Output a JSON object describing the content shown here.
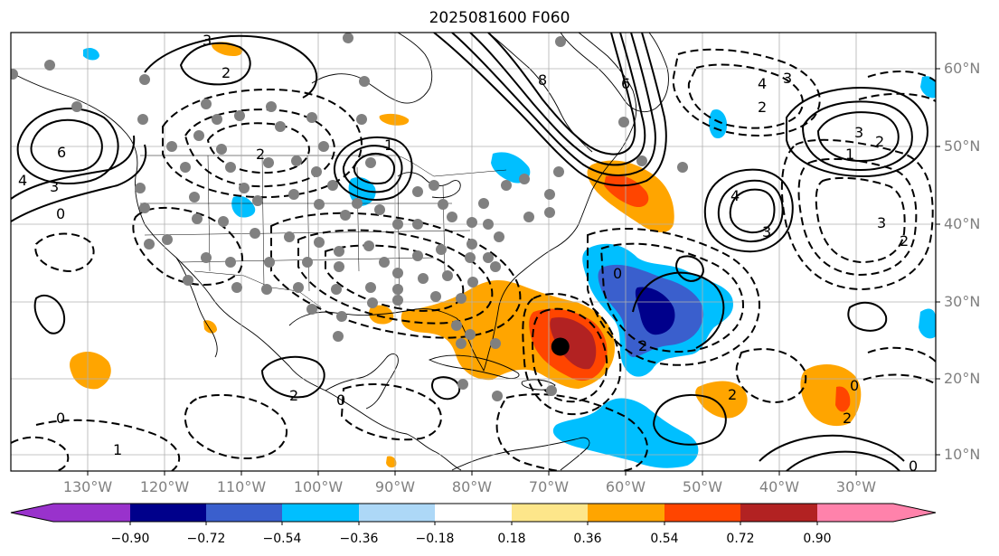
{
  "title": "2025081600 F060",
  "axes": {
    "lat_ticks": [
      "60°N",
      "50°N",
      "40°N",
      "30°N",
      "20°N",
      "10°N"
    ],
    "lon_ticks": [
      "130°W",
      "120°W",
      "110°W",
      "100°W",
      "90°W",
      "80°W",
      "70°W",
      "60°W",
      "50°W",
      "40°W",
      "30°W"
    ]
  },
  "colorbar": {
    "tick_labels": [
      "−0.90",
      "−0.72",
      "−0.54",
      "−0.36",
      "−0.18",
      "0.18",
      "0.36",
      "0.54",
      "0.72",
      "0.90"
    ],
    "colors": [
      "#9932cc",
      "#00008b",
      "#3a5fcd",
      "#00bfff",
      "#add8f7",
      "#ffffff",
      "#fde68a",
      "#ffa500",
      "#ff4500",
      "#b22222",
      "#ff82ab"
    ]
  },
  "contour_labels": {
    "west_high": "6",
    "west_high2": "4",
    "west_3": "3",
    "west_0": "0",
    "canada_3": "3",
    "canada_2": "2",
    "plains_2": "2",
    "lakes_1": "1",
    "atl_8": "8",
    "atl_6": "6",
    "atl_4": "4",
    "atl_3": "3",
    "atl_2": "2",
    "mid_4": "4",
    "mid_3": "3",
    "east_3": "3",
    "east_2": "2",
    "east_1": "1",
    "east_n3": "3",
    "east_n2": "2",
    "trop_2": "2",
    "trop_0": "0",
    "carib_2": "2",
    "south_2": "2",
    "south_0": "0",
    "pac_0": "0",
    "pac_1": "1",
    "far_east_0": "0",
    "east_trop_2": "2",
    "east_trop_0": "0"
  },
  "storm_marker": {
    "lon": -68.5,
    "lat": 24.0
  }
}
